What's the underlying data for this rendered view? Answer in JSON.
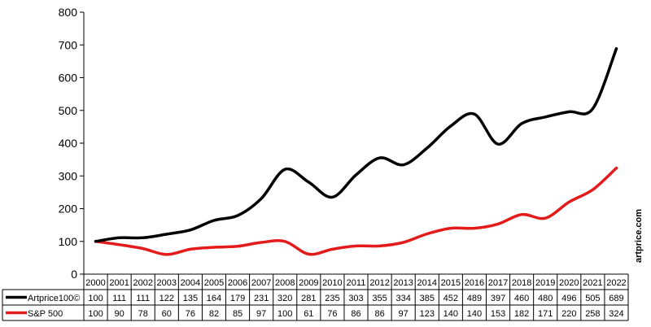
{
  "chart_data": {
    "type": "line",
    "title": "",
    "xlabel": "",
    "ylabel": "",
    "ylim": [
      0,
      800
    ],
    "yticks": [
      0,
      100,
      200,
      300,
      400,
      500,
      600,
      700,
      800
    ],
    "grid": false,
    "legend": "table-below",
    "categories": [
      "2000",
      "2001",
      "2002",
      "2003",
      "2004",
      "2005",
      "2006",
      "2007",
      "2008",
      "2009",
      "2010",
      "2011",
      "2012",
      "2013",
      "2014",
      "2015",
      "2016",
      "2017",
      "2018",
      "2019",
      "2020",
      "2021",
      "2022"
    ],
    "series": [
      {
        "name": "Artprice100©",
        "color": "#000000",
        "values": [
          100,
          111,
          111,
          122,
          135,
          164,
          179,
          231,
          320,
          281,
          235,
          303,
          355,
          334,
          385,
          452,
          489,
          397,
          460,
          480,
          496,
          505,
          689
        ],
        "labels": [
          "100",
          "111",
          "111",
          "122",
          "135",
          "164",
          "179",
          "231",
          "320",
          "281",
          "235",
          "303",
          "355",
          "334",
          "385",
          "452",
          "489",
          "397",
          "460",
          "480",
          "496",
          "505",
          "689"
        ]
      },
      {
        "name": "S&P 500",
        "color": "#e31b1b",
        "values": [
          100,
          90,
          78,
          60,
          76,
          82,
          85,
          97,
          100,
          61,
          76,
          86,
          86,
          97,
          123,
          140,
          140,
          153,
          182,
          171,
          220,
          258,
          324
        ],
        "labels": [
          "100",
          "90",
          "78",
          "60",
          "76",
          "82",
          "85",
          "97",
          "100",
          "61",
          "76",
          "86",
          "86",
          "97",
          "123",
          "140",
          "140",
          "153",
          "182",
          "171",
          "220",
          "258",
          "324"
        ]
      }
    ]
  },
  "watermark": "artprice.com"
}
